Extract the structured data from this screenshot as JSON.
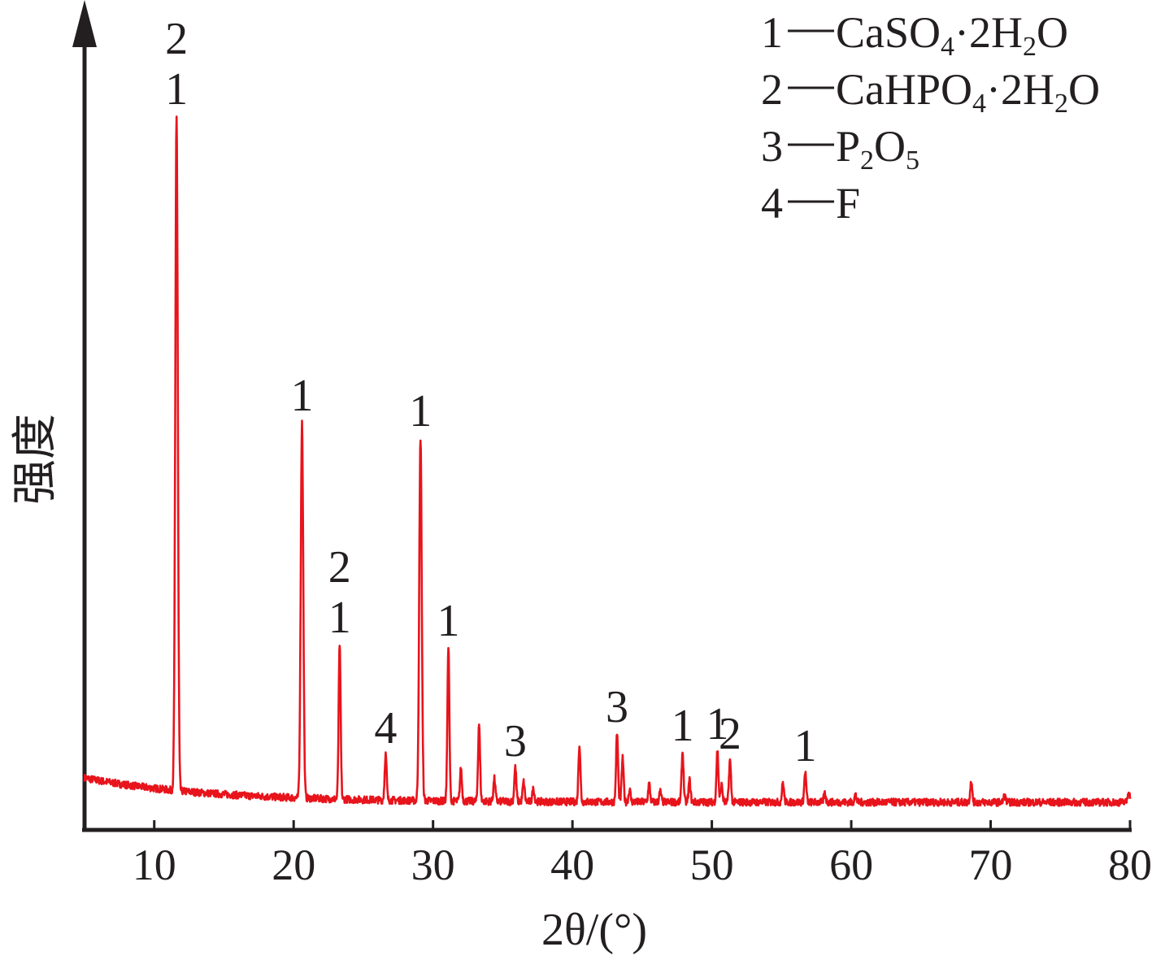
{
  "chart_data": {
    "type": "line",
    "title": "",
    "xlabel": "2θ/(°)",
    "ylabel": "强度",
    "xlim": [
      5,
      80
    ],
    "ylim": [
      0,
      100
    ],
    "y_ticks_shown": false,
    "grid": false,
    "line_color": "#e8141c",
    "x_ticks": [
      10,
      20,
      30,
      40,
      50,
      60,
      70,
      80
    ],
    "legend": {
      "position": "top-right",
      "entries": [
        {
          "key": "1",
          "formula": "CaSO4·2H2O",
          "parts": [
            [
              "CaSO",
              ""
            ],
            [
              "4",
              "sub"
            ],
            [
              "·2H",
              ""
            ],
            [
              "2",
              "sub"
            ],
            [
              "O",
              ""
            ]
          ]
        },
        {
          "key": "2",
          "formula": "CaHPO4·2H2O",
          "parts": [
            [
              "CaHPO",
              ""
            ],
            [
              "4",
              "sub"
            ],
            [
              "·2H",
              ""
            ],
            [
              "2",
              "sub"
            ],
            [
              "O",
              ""
            ]
          ]
        },
        {
          "key": "3",
          "formula": "P2O5",
          "parts": [
            [
              "P",
              ""
            ],
            [
              "2",
              "sub"
            ],
            [
              "O",
              ""
            ],
            [
              "5",
              "sub"
            ]
          ]
        },
        {
          "key": "4",
          "formula": "F",
          "parts": [
            [
              "F",
              ""
            ]
          ]
        }
      ]
    },
    "peaks": [
      {
        "x": 11.6,
        "y": 87.8,
        "labels": [
          "2",
          "1"
        ]
      },
      {
        "x": 20.6,
        "y": 50.1,
        "labels": [
          "1"
        ]
      },
      {
        "x": 23.3,
        "y": 22.8,
        "labels": [
          "2",
          "1"
        ]
      },
      {
        "x": 26.6,
        "y": 9.2,
        "labels": [
          "4"
        ]
      },
      {
        "x": 29.1,
        "y": 48.2,
        "labels": [
          "1"
        ]
      },
      {
        "x": 31.1,
        "y": 22.4,
        "labels": [
          "1"
        ]
      },
      {
        "x": 32.0,
        "y": 7.4
      },
      {
        "x": 33.3,
        "y": 13.0
      },
      {
        "x": 34.4,
        "y": 6.2
      },
      {
        "x": 35.9,
        "y": 7.6,
        "labels": [
          "3"
        ]
      },
      {
        "x": 36.5,
        "y": 5.8
      },
      {
        "x": 37.2,
        "y": 5.0
      },
      {
        "x": 40.5,
        "y": 10.4
      },
      {
        "x": 43.2,
        "y": 11.8,
        "labels": [
          "3"
        ]
      },
      {
        "x": 43.6,
        "y": 8.7
      },
      {
        "x": 44.1,
        "y": 4.8
      },
      {
        "x": 45.5,
        "y": 5.6
      },
      {
        "x": 46.3,
        "y": 4.6
      },
      {
        "x": 47.9,
        "y": 9.5,
        "labels": [
          "1"
        ]
      },
      {
        "x": 48.4,
        "y": 6.0
      },
      {
        "x": 50.4,
        "y": 9.7,
        "labels": [
          "1"
        ]
      },
      {
        "x": 50.7,
        "y": 5.4
      },
      {
        "x": 51.3,
        "y": 8.5,
        "labels": [
          "2"
        ]
      },
      {
        "x": 55.1,
        "y": 5.7
      },
      {
        "x": 56.7,
        "y": 7.0,
        "labels": [
          "1"
        ]
      },
      {
        "x": 58.1,
        "y": 4.4
      },
      {
        "x": 60.3,
        "y": 4.2
      },
      {
        "x": 68.6,
        "y": 5.9
      },
      {
        "x": 71.0,
        "y": 4.1
      },
      {
        "x": 79.9,
        "y": 4.7
      }
    ]
  }
}
